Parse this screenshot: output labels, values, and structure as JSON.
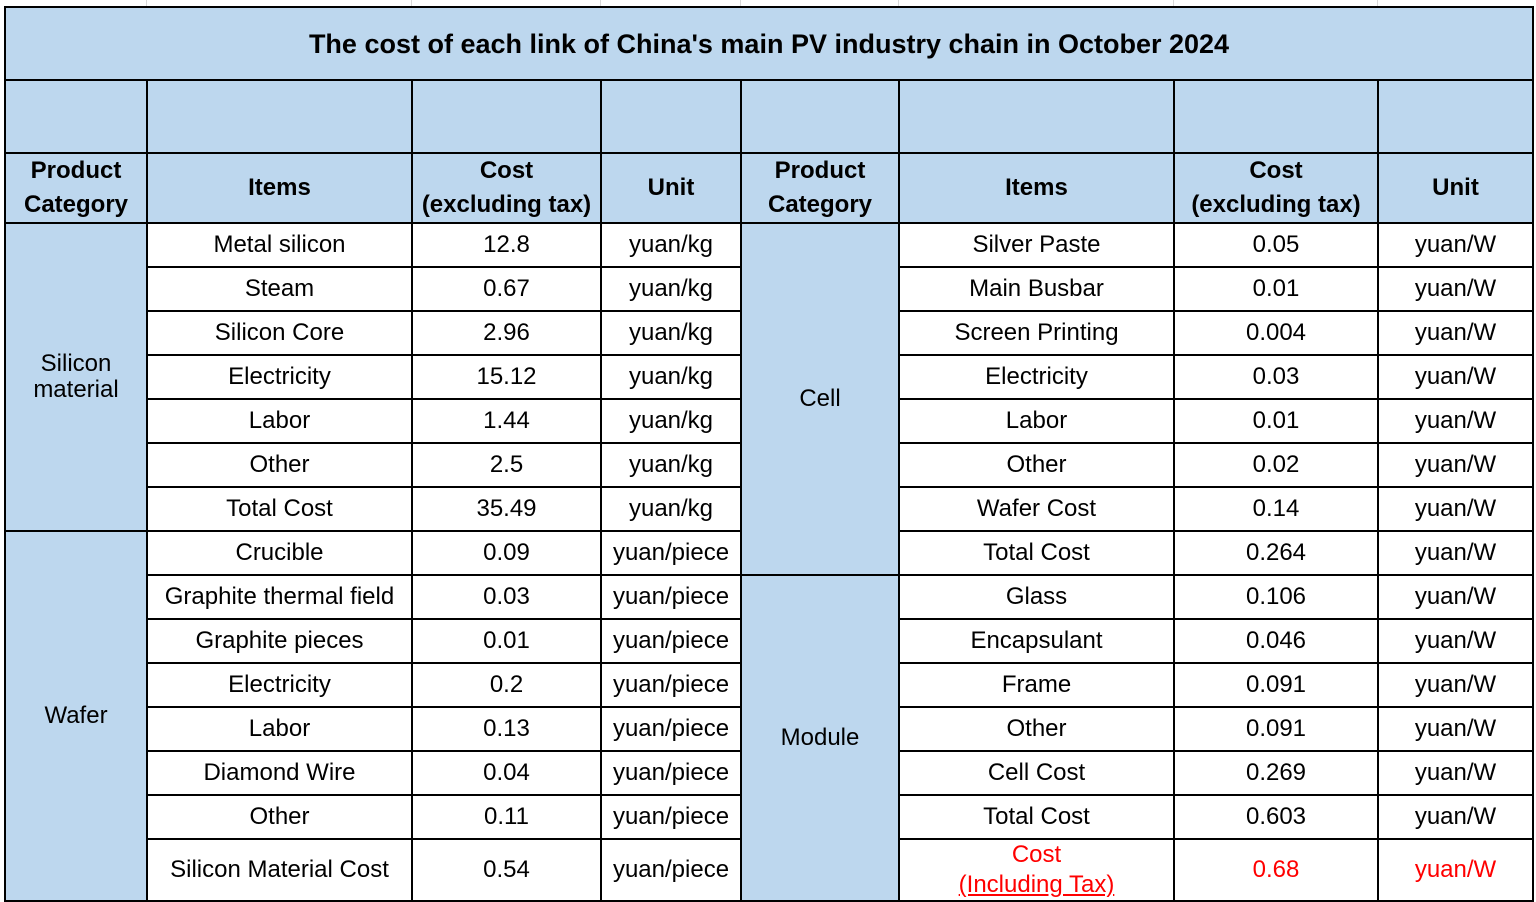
{
  "title": "The cost of each link of China's main PV industry chain in October 2024",
  "headers": {
    "left": {
      "category": [
        "Product",
        "Category"
      ],
      "items": "Items",
      "cost": [
        "Cost",
        "(excluding tax)"
      ],
      "unit": "Unit"
    },
    "right": {
      "category": [
        "Product",
        "Category"
      ],
      "items": "Items",
      "cost": [
        "Cost",
        "(excluding tax)"
      ],
      "unit": "Unit"
    }
  },
  "left": {
    "silicon": {
      "category": [
        "Silicon",
        "material"
      ],
      "rows": [
        {
          "item": "Metal silicon",
          "cost": "12.8",
          "unit": "yuan/kg"
        },
        {
          "item": "Steam",
          "cost": "0.67",
          "unit": "yuan/kg"
        },
        {
          "item": "Silicon Core",
          "cost": "2.96",
          "unit": "yuan/kg"
        },
        {
          "item": "Electricity",
          "cost": "15.12",
          "unit": "yuan/kg"
        },
        {
          "item": "Labor",
          "cost": "1.44",
          "unit": "yuan/kg"
        },
        {
          "item": "Other",
          "cost": "2.5",
          "unit": "yuan/kg"
        },
        {
          "item": "Total Cost",
          "cost": "35.49",
          "unit": "yuan/kg"
        }
      ]
    },
    "wafer": {
      "category": "Wafer",
      "rows": [
        {
          "item": "Crucible",
          "cost": "0.09",
          "unit": "yuan/piece"
        },
        {
          "item": "Graphite thermal field",
          "cost": "0.03",
          "unit": "yuan/piece"
        },
        {
          "item": "Graphite pieces",
          "cost": "0.01",
          "unit": "yuan/piece"
        },
        {
          "item": "Electricity",
          "cost": "0.2",
          "unit": "yuan/piece"
        },
        {
          "item": "Labor",
          "cost": "0.13",
          "unit": "yuan/piece"
        },
        {
          "item": "Diamond Wire",
          "cost": "0.04",
          "unit": "yuan/piece"
        },
        {
          "item": "Other",
          "cost": "0.11",
          "unit": "yuan/piece"
        },
        {
          "item": "Silicon Material Cost",
          "cost": "0.54",
          "unit": "yuan/piece"
        }
      ]
    }
  },
  "right": {
    "cell": {
      "category": "Cell",
      "rows": [
        {
          "item": "Silver Paste",
          "cost": "0.05",
          "unit": "yuan/W"
        },
        {
          "item": "Main Busbar",
          "cost": "0.01",
          "unit": "yuan/W"
        },
        {
          "item": "Screen Printing",
          "cost": "0.004",
          "unit": "yuan/W"
        },
        {
          "item": "Electricity",
          "cost": "0.03",
          "unit": "yuan/W"
        },
        {
          "item": "Labor",
          "cost": "0.01",
          "unit": "yuan/W"
        },
        {
          "item": "Other",
          "cost": "0.02",
          "unit": "yuan/W"
        },
        {
          "item": "Wafer Cost",
          "cost": "0.14",
          "unit": "yuan/W"
        },
        {
          "item": "Total Cost",
          "cost": "0.264",
          "unit": "yuan/W"
        }
      ]
    },
    "module": {
      "category": "Module",
      "rows": [
        {
          "item": "Glass",
          "cost": "0.106",
          "unit": "yuan/W"
        },
        {
          "item": "Encapsulant",
          "cost": "0.046",
          "unit": "yuan/W"
        },
        {
          "item": "Frame",
          "cost": "0.091",
          "unit": "yuan/W"
        },
        {
          "item": "Other",
          "cost": "0.091",
          "unit": "yuan/W"
        },
        {
          "item": "Cell Cost",
          "cost": "0.269",
          "unit": "yuan/W"
        },
        {
          "item": "Total Cost",
          "cost": "0.603",
          "unit": "yuan/W"
        }
      ],
      "tax_row": {
        "item": [
          "Cost",
          "(Including Tax)"
        ],
        "cost": "0.68",
        "unit": "yuan/W"
      }
    }
  },
  "colors": {
    "header_fill": "#bdd7ee",
    "highlight_text": "#ff0000",
    "border": "#000000"
  }
}
